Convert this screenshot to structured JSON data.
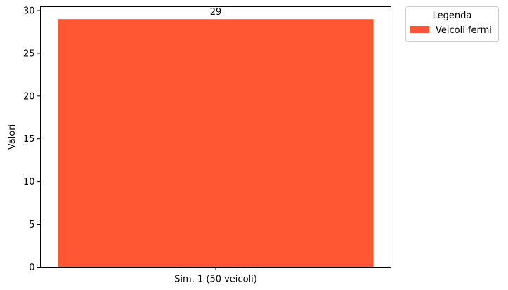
{
  "chart_data": {
    "type": "bar",
    "categories": [
      "Sim. 1 (50 veicoli)"
    ],
    "series": [
      {
        "name": "Veicoli fermi",
        "values": [
          29
        ],
        "color": "#FF5733"
      }
    ],
    "data_labels": [
      "29"
    ],
    "xlabel": "",
    "ylabel": "Valori",
    "ylim": [
      0,
      30.45
    ],
    "yticks": [
      0,
      5,
      10,
      15,
      20,
      25,
      30
    ],
    "grid": false,
    "legend": {
      "title": "Legenda",
      "placement": "outside-top-right",
      "entries": [
        "Veicoli fermi"
      ]
    }
  }
}
